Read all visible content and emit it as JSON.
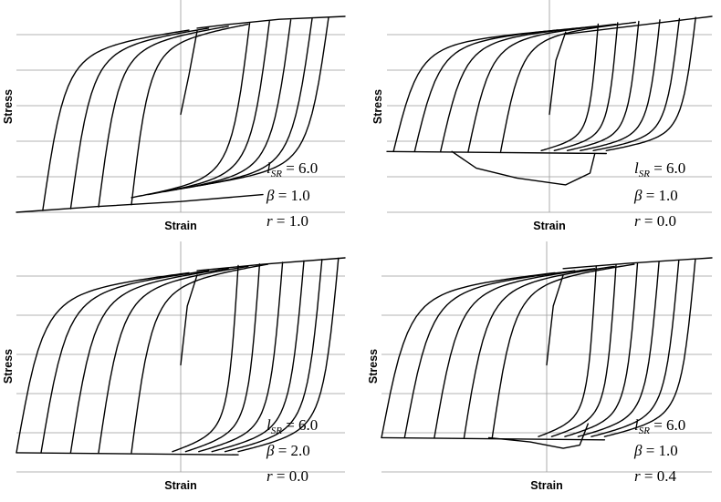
{
  "chart_data": [
    {
      "type": "line",
      "panel": "top-left",
      "xlabel": "Strain",
      "ylabel": "Stress",
      "params": {
        "lsr": "6.0",
        "beta": "1.0",
        "r": "1.0"
      },
      "grid": true,
      "reversal_strains": [
        -1.0,
        -0.86,
        -0.67,
        -0.49,
        -0.3,
        0.05,
        0.31,
        0.49,
        0.67,
        0.84,
        1.0
      ],
      "unloading_from_positive_at": [
        0.42,
        0.54,
        0.67,
        0.8,
        0.9
      ],
      "loading_from_negative_at": [
        -0.84,
        -0.67,
        -0.5,
        -0.3
      ],
      "initial_load": {
        "x": [
          0.0,
          0.05,
          0.1
        ],
        "y": [
          0.0,
          0.4,
          0.85
        ]
      },
      "tension_envelope": {
        "x": [
          0.1,
          0.3,
          0.6,
          1.0
        ],
        "y": [
          0.88,
          0.92,
          0.97,
          1.0
        ]
      },
      "compression_envelope": {
        "x": [
          -1.0,
          -0.5,
          0.0,
          0.5
        ],
        "y": [
          -1.0,
          -0.94,
          -0.89,
          -0.82
        ]
      }
    },
    {
      "type": "line",
      "panel": "top-right",
      "xlabel": "Strain",
      "ylabel": "Stress",
      "params": {
        "lsr": "6.0",
        "beta": "1.0",
        "r": "0.0"
      },
      "grid": true,
      "compression_plateau": -0.38,
      "loading_from_negative_at": [
        -0.96,
        -0.83,
        -0.67,
        -0.5,
        -0.3
      ],
      "unloading_from_positive_at": [
        0.3,
        0.42,
        0.55,
        0.68,
        0.8,
        0.9
      ],
      "tension_envelope": {
        "x": [
          0.1,
          0.5,
          1.0
        ],
        "y": [
          0.82,
          0.9,
          1.0
        ]
      },
      "buckling_loop": {
        "x": [
          -0.6,
          -0.45,
          -0.2,
          0.1,
          0.25,
          0.28
        ],
        "y": [
          -0.38,
          -0.55,
          -0.65,
          -0.72,
          -0.6,
          -0.4
        ]
      }
    },
    {
      "type": "line",
      "panel": "bottom-left",
      "xlabel": "Strain",
      "ylabel": "Stress",
      "params": {
        "lsr": "6.0",
        "beta": "2.0",
        "r": "0.0"
      },
      "grid": true,
      "compression_plateau": -0.82,
      "loading_from_negative_at": [
        -1.0,
        -0.85,
        -0.67,
        -0.5,
        -0.3
      ],
      "unloading_from_positive_at": [
        0.35,
        0.48,
        0.62,
        0.75,
        0.86,
        0.96
      ],
      "tension_envelope": {
        "x": [
          0.1,
          0.5,
          1.0
        ],
        "y": [
          0.88,
          0.94,
          1.0
        ]
      }
    },
    {
      "type": "line",
      "panel": "bottom-right",
      "xlabel": "Strain",
      "ylabel": "Stress",
      "params": {
        "lsr": "6.0",
        "beta": "1.0",
        "r": "0.4"
      },
      "grid": true,
      "compression_plateau": -0.68,
      "loading_from_negative_at": [
        -1.0,
        -0.86,
        -0.68,
        -0.5,
        -0.33
      ],
      "unloading_from_positive_at": [
        0.3,
        0.42,
        0.55,
        0.68,
        0.8,
        0.9
      ],
      "tension_envelope": {
        "x": [
          0.1,
          0.5,
          1.0
        ],
        "y": [
          0.9,
          0.95,
          1.0
        ]
      },
      "buckling_loop": {
        "x": [
          -0.35,
          -0.1,
          0.1,
          0.2,
          0.25
        ],
        "y": [
          -0.68,
          -0.72,
          -0.78,
          -0.75,
          -0.55
        ]
      }
    }
  ]
}
